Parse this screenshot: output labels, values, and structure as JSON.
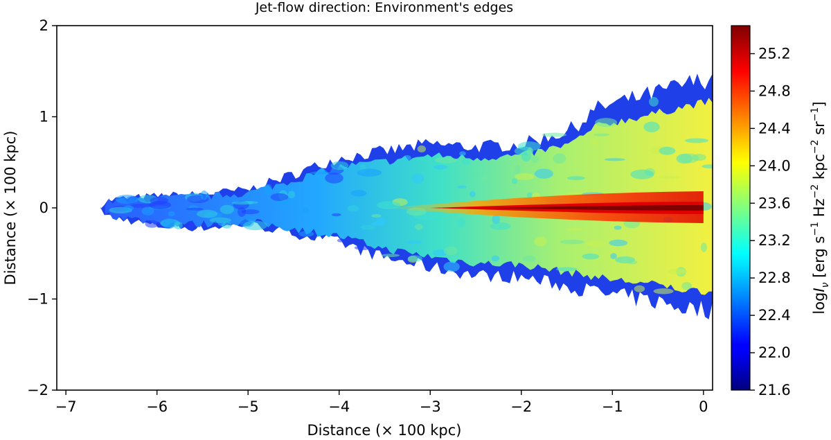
{
  "chart_data": {
    "type": "heatmap",
    "title": "Jet-flow direction: Environment's edges",
    "xlabel": "Distance (× 100 kpc)",
    "ylabel": "Distance (× 100 kpc)",
    "xlim": [
      -7.1,
      0.1
    ],
    "ylim": [
      -2,
      2
    ],
    "x_ticks": [
      -7,
      -6,
      -5,
      -4,
      -3,
      -2,
      -1,
      0
    ],
    "x_tick_labels": [
      "−7",
      "−6",
      "−5",
      "−4",
      "−3",
      "−2",
      "−1",
      "0"
    ],
    "y_ticks": [
      -2,
      -1,
      0,
      1,
      2
    ],
    "y_tick_labels": [
      "−2",
      "−1",
      "0",
      "1",
      "2"
    ],
    "colormap": "jet",
    "colorbar": {
      "label": "log",
      "label_full": "logIν [erg s−1 Hz−2 kpc−2 sr−1]",
      "range": [
        21.6,
        25.5
      ],
      "ticks": [
        21.6,
        22.0,
        22.4,
        22.8,
        23.2,
        23.6,
        24.0,
        24.4,
        24.8,
        25.2
      ],
      "tick_labels": [
        "21.6",
        "22.0",
        "22.4",
        "22.8",
        "23.2",
        "23.6",
        "24.0",
        "24.4",
        "24.8",
        "25.2"
      ]
    },
    "emission_region": {
      "x_start": -6.62,
      "x_end": 0.1,
      "upper_edge": [
        [
          -6.62,
          0.03
        ],
        [
          -6.5,
          0.09
        ],
        [
          -6.0,
          0.13
        ],
        [
          -5.5,
          0.15
        ],
        [
          -5.0,
          0.2
        ],
        [
          -4.5,
          0.37
        ],
        [
          -4.0,
          0.55
        ],
        [
          -3.5,
          0.62
        ],
        [
          -3.0,
          0.7
        ],
        [
          -2.5,
          0.67
        ],
        [
          -2.0,
          0.7
        ],
        [
          -1.5,
          0.84
        ],
        [
          -1.3,
          0.97
        ],
        [
          -1.2,
          1.08
        ],
        [
          -1.0,
          1.14
        ],
        [
          -0.5,
          1.27
        ],
        [
          -0.2,
          1.36
        ],
        [
          0.1,
          1.43
        ]
      ],
      "lower_edge": [
        [
          -6.62,
          -0.03
        ],
        [
          -6.5,
          -0.1
        ],
        [
          -6.0,
          -0.2
        ],
        [
          -5.5,
          -0.22
        ],
        [
          -5.0,
          -0.18
        ],
        [
          -4.5,
          -0.28
        ],
        [
          -4.0,
          -0.38
        ],
        [
          -3.5,
          -0.55
        ],
        [
          -3.0,
          -0.65
        ],
        [
          -2.5,
          -0.74
        ],
        [
          -2.0,
          -0.76
        ],
        [
          -1.5,
          -0.86
        ],
        [
          -1.0,
          -0.96
        ],
        [
          -0.5,
          -1.03
        ],
        [
          -0.2,
          -1.1
        ],
        [
          0.1,
          -1.12
        ]
      ],
      "jet_axis_y": 0,
      "jet_peak_value": 25.4,
      "edge_value": 22.0
    }
  }
}
